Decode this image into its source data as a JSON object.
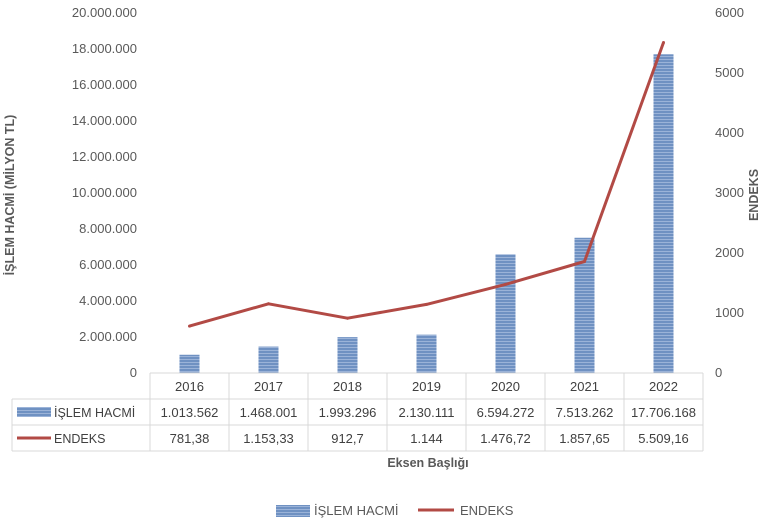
{
  "chart_data": {
    "type": "bar",
    "categories": [
      "2016",
      "2017",
      "2018",
      "2019",
      "2020",
      "2021",
      "2022"
    ],
    "series": [
      {
        "name": "İŞLEM HACMİ",
        "chart": "bar",
        "axis": "left",
        "values": [
          1013562,
          1468001,
          1993296,
          2130111,
          6594272,
          7513262,
          17706168
        ],
        "labels": [
          "1.013.562",
          "1.468.001",
          "1.993.296",
          "2.130.111",
          "6.594.272",
          "7.513.262",
          "17.706.168"
        ],
        "color": "#6f91c2"
      },
      {
        "name": "ENDEKS",
        "chart": "line",
        "axis": "right",
        "values": [
          781.38,
          1153.33,
          912.7,
          1144,
          1476.72,
          1857.65,
          5509.16
        ],
        "labels": [
          "781,38",
          "1.153,33",
          "912,7",
          "1.144",
          "1.476,72",
          "1.857,65",
          "5.509,16"
        ],
        "color": "#b24a45"
      }
    ],
    "ylabel": "İŞLEM HACMİ (MİLYON TL)",
    "y2label": "ENDEKS",
    "xlabel": "Eksen Başlığı",
    "ylim": [
      0,
      20000000
    ],
    "y2lim": [
      0,
      6000
    ],
    "y_ticks": [
      "0",
      "2.000.000",
      "4.000.000",
      "6.000.000",
      "8.000.000",
      "10.000.000",
      "12.000.000",
      "14.000.000",
      "16.000.000",
      "18.000.000",
      "20.000.000"
    ],
    "y2_ticks": [
      "0",
      "1000",
      "2000",
      "3000",
      "4000",
      "5000",
      "6000"
    ],
    "grid": false,
    "data_table": true,
    "legend": "bottom-center",
    "legend_entries": [
      "İŞLEM HACMİ",
      "ENDEKS"
    ]
  }
}
